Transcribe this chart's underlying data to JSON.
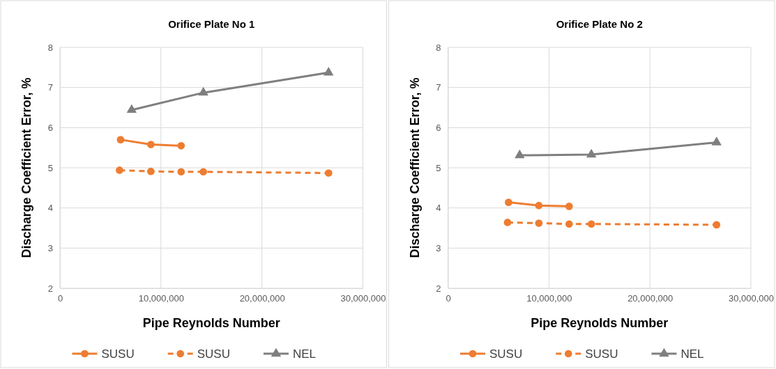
{
  "chart_data": [
    {
      "type": "line",
      "title": "Orifice Plate No 1",
      "xlabel": "Pipe Reynolds Number",
      "ylabel": "Discharge Coefficient Error, %",
      "xlim": [
        0,
        30000000
      ],
      "xticks": [
        {
          "value": 0,
          "label": "0"
        },
        {
          "value": 10000000,
          "label": "10,000,000"
        },
        {
          "value": 20000000,
          "label": "20,000,000"
        },
        {
          "value": 30000000,
          "label": "30,000,000"
        }
      ],
      "ylim": [
        2,
        8
      ],
      "yticks": [
        2,
        3,
        4,
        5,
        6,
        7,
        8
      ],
      "grid": true,
      "legend": "bottom",
      "series": [
        {
          "name": "SUSU",
          "color": "#ed7d31",
          "marker": "circle",
          "line_style": "solid",
          "x": [
            6000000,
            9000000,
            12000000
          ],
          "values": [
            5.7,
            5.58,
            5.55
          ]
        },
        {
          "name": "SUSU",
          "color": "#ed7d31",
          "marker": "circle",
          "line_style": "dashed",
          "x": [
            5900000,
            9000000,
            12000000,
            14200000,
            26600000
          ],
          "values": [
            4.94,
            4.91,
            4.9,
            4.9,
            4.87
          ]
        },
        {
          "name": "NEL",
          "color": "#7f7f7f",
          "marker": "triangle",
          "line_style": "solid",
          "x": [
            7100000,
            14200000,
            26600000
          ],
          "values": [
            6.44,
            6.87,
            7.37
          ]
        }
      ]
    },
    {
      "type": "line",
      "title": "Orifice Plate No 2",
      "xlabel": "Pipe Reynolds Number",
      "ylabel": "Discharge Coefficient Error, %",
      "xlim": [
        0,
        30000000
      ],
      "xticks": [
        {
          "value": 0,
          "label": "0"
        },
        {
          "value": 10000000,
          "label": "10,000,000"
        },
        {
          "value": 20000000,
          "label": "20,000,000"
        },
        {
          "value": 30000000,
          "label": "30,000,000"
        }
      ],
      "ylim": [
        2,
        8
      ],
      "yticks": [
        2,
        3,
        4,
        5,
        6,
        7,
        8
      ],
      "grid": true,
      "legend": "bottom",
      "series": [
        {
          "name": "SUSU",
          "color": "#ed7d31",
          "marker": "circle",
          "line_style": "solid",
          "x": [
            6000000,
            9000000,
            12000000
          ],
          "values": [
            4.14,
            4.06,
            4.04
          ]
        },
        {
          "name": "SUSU",
          "color": "#ed7d31",
          "marker": "circle",
          "line_style": "dashed",
          "x": [
            5900000,
            9000000,
            12000000,
            14200000,
            26600000
          ],
          "values": [
            3.64,
            3.62,
            3.6,
            3.6,
            3.58
          ]
        },
        {
          "name": "NEL",
          "color": "#7f7f7f",
          "marker": "triangle",
          "line_style": "solid",
          "x": [
            7100000,
            14200000,
            26600000
          ],
          "values": [
            5.31,
            5.33,
            5.63
          ]
        }
      ]
    }
  ]
}
